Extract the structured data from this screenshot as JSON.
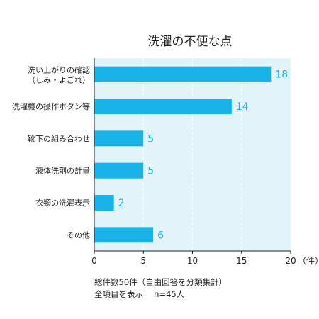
{
  "chart_data": {
    "type": "bar",
    "orientation": "horizontal",
    "title": "洗濯の不便な点",
    "categories": [
      [
        "洗い上がりの確認",
        "（しみ・よごれ）"
      ],
      [
        "洗濯機の操作ボタン等"
      ],
      [
        "靴下の組み合わせ"
      ],
      [
        "液体洗剤の計量"
      ],
      [
        "衣類の洗濯表示"
      ],
      [
        "その他"
      ]
    ],
    "values": [
      18,
      14,
      5,
      5,
      2,
      6
    ],
    "xlim": [
      0,
      20
    ],
    "xticks": [
      0,
      5,
      10,
      15,
      20
    ],
    "x_unit": "（件）",
    "grid": true,
    "bar_color": "#1ab3e8",
    "plot_bg": "#e3f3fa",
    "label_color": "#1ab3e8"
  },
  "notes": {
    "line1": "総件数50件（自由回答を分類集計）",
    "line2": "全項目を表示　 n=45人"
  }
}
